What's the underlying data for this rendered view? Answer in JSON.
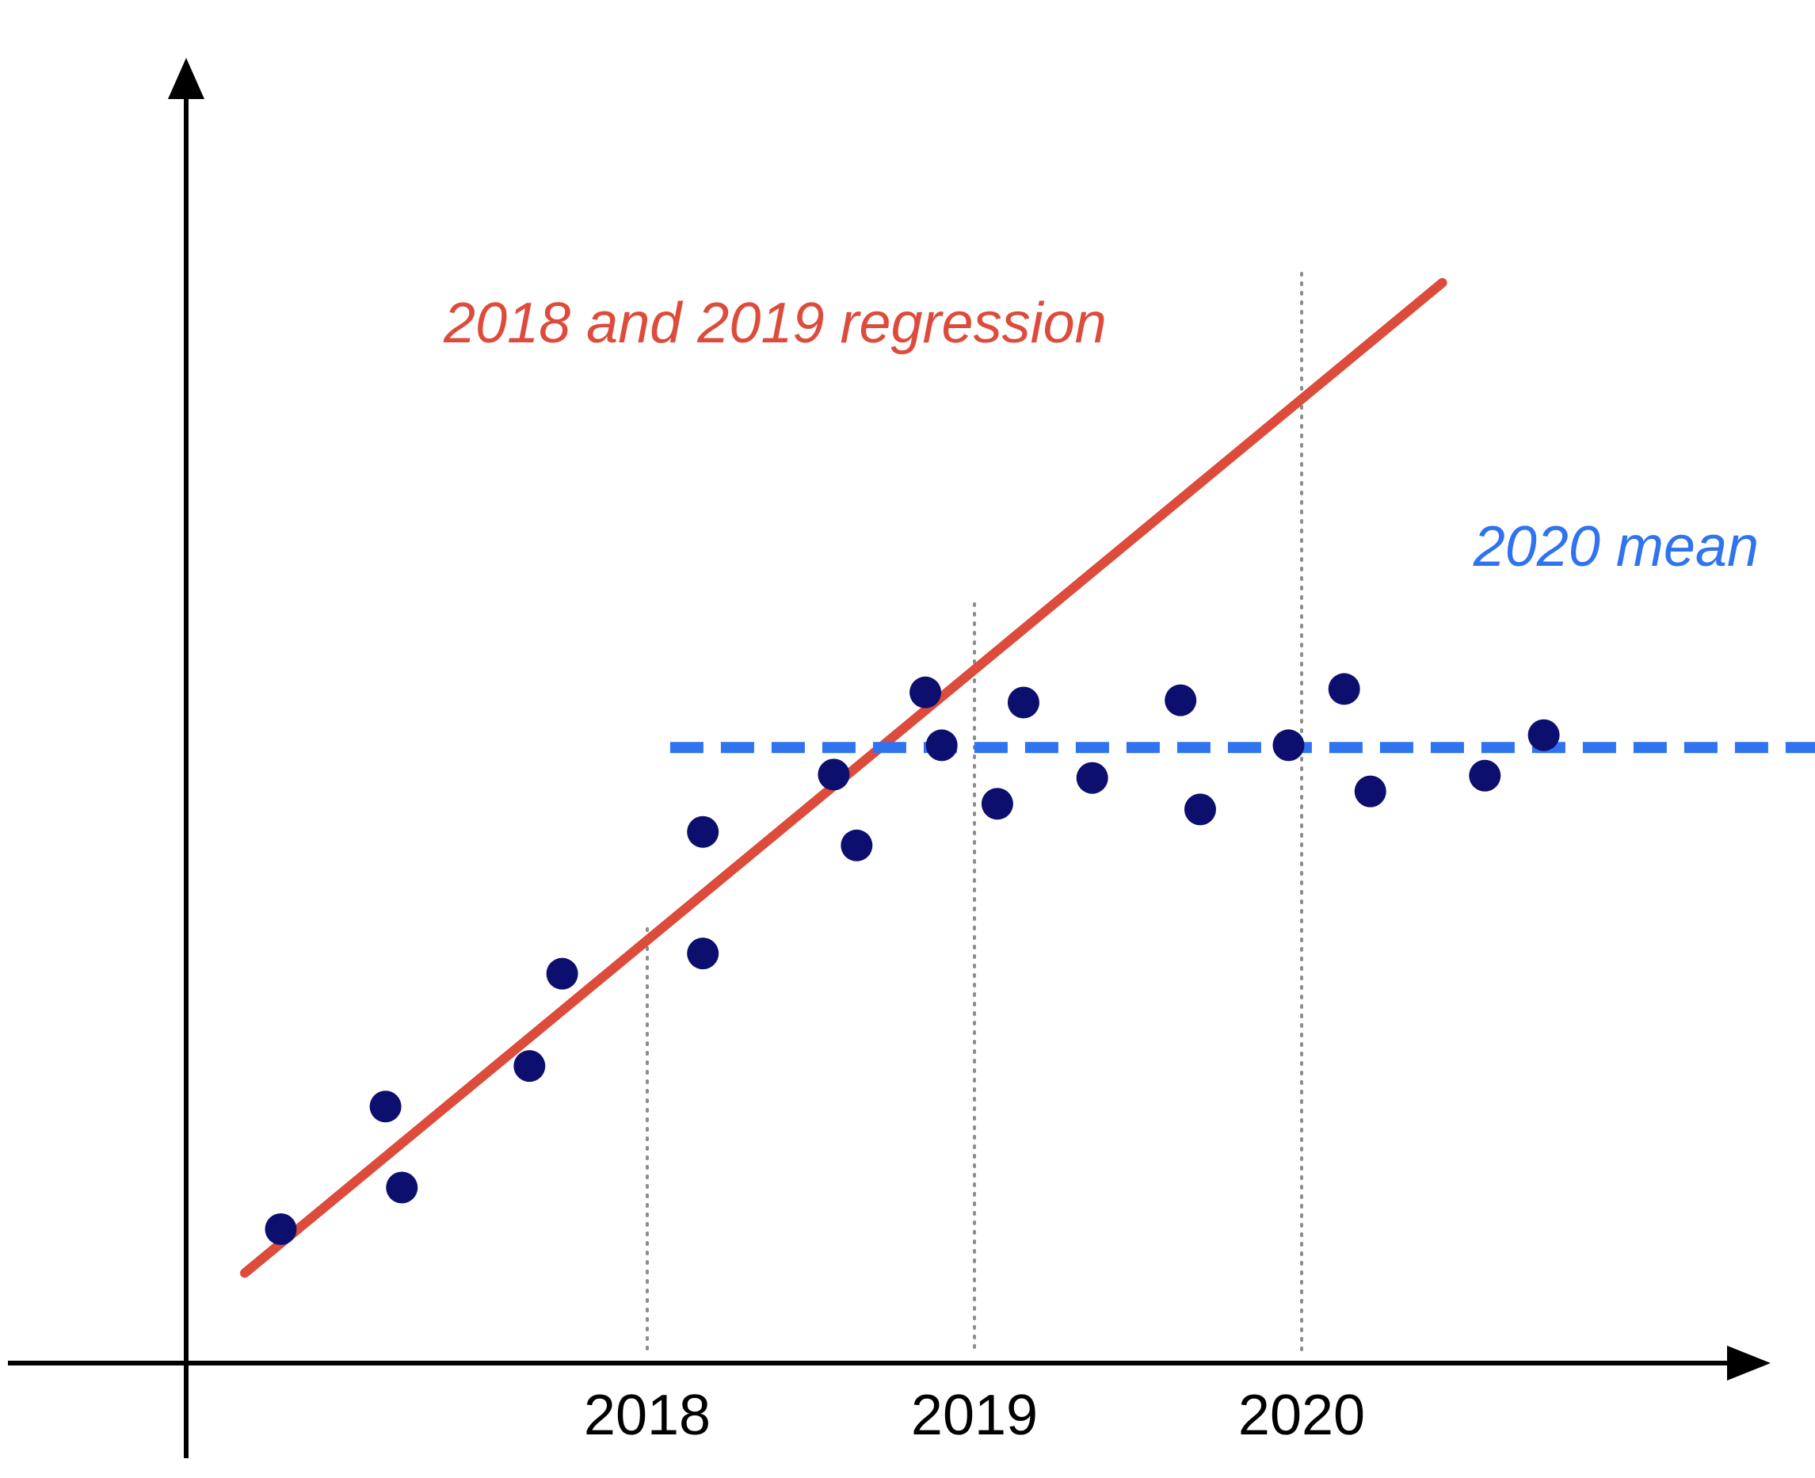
{
  "chart_data": {
    "type": "scatter",
    "title": "",
    "xlabel": "",
    "ylabel": "",
    "x_axis": {
      "ticks": [
        {
          "value": 2018,
          "label": "2018"
        },
        {
          "value": 2019,
          "label": "2019"
        },
        {
          "value": 2020,
          "label": "2020"
        }
      ],
      "range": [
        2016.54,
        2021.9
      ]
    },
    "y_axis": {
      "range": [
        0,
        100
      ],
      "tick_labels_shown": false
    },
    "grid": "dotted verticals at 2018, 2019, 2020",
    "points": [
      {
        "x": 2016.88,
        "y": 11.9
      },
      {
        "x": 2017.2,
        "y": 22.8
      },
      {
        "x": 2017.25,
        "y": 15.6
      },
      {
        "x": 2017.64,
        "y": 26.4
      },
      {
        "x": 2017.74,
        "y": 34.6
      },
      {
        "x": 2018.17,
        "y": 36.4
      },
      {
        "x": 2018.17,
        "y": 47.2
      },
      {
        "x": 2018.57,
        "y": 52.3
      },
      {
        "x": 2018.64,
        "y": 46.0
      },
      {
        "x": 2018.85,
        "y": 59.6
      },
      {
        "x": 2018.9,
        "y": 54.9
      },
      {
        "x": 2019.07,
        "y": 49.7
      },
      {
        "x": 2019.15,
        "y": 58.7
      },
      {
        "x": 2019.36,
        "y": 52.0
      },
      {
        "x": 2019.63,
        "y": 58.9
      },
      {
        "x": 2019.69,
        "y": 49.2
      },
      {
        "x": 2019.96,
        "y": 54.9
      },
      {
        "x": 2020.13,
        "y": 59.9
      },
      {
        "x": 2020.21,
        "y": 50.8
      },
      {
        "x": 2020.56,
        "y": 52.2
      },
      {
        "x": 2020.74,
        "y": 55.8
      }
    ],
    "series": [
      {
        "name": "2018 and 2019 regression",
        "type": "line",
        "color": "#dd4b3b",
        "from": {
          "x": 2016.77,
          "y": 8.0
        },
        "to": {
          "x": 2020.43,
          "y": 96.0
        }
      },
      {
        "name": "2020 mean",
        "type": "dashed-line",
        "color": "#2f73ef",
        "from": {
          "x": 2018.07,
          "y": 54.7
        },
        "to": {
          "x": 2021.9,
          "y": 54.7
        }
      }
    ],
    "colors": {
      "points": "#0d0f6e",
      "axes": "#000000",
      "gridlines": "#8c8c8c"
    }
  }
}
